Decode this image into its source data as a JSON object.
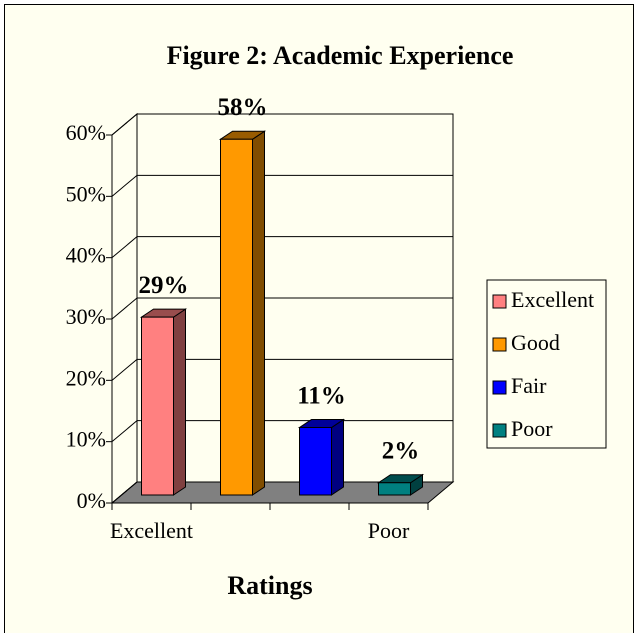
{
  "chart_data": {
    "type": "bar3d",
    "title": "Figure 2:  Academic Experience",
    "x_label": "Ratings",
    "categories": [
      "Excellent",
      null,
      null,
      "Poor"
    ],
    "values": [
      29,
      58,
      11,
      2
    ],
    "value_labels": [
      "29%",
      "58%",
      "11%",
      "2%"
    ],
    "colors": [
      "#ff8080",
      "#ff9900",
      "#0000ff",
      "#008080"
    ],
    "legend_labels": [
      "Excellent",
      "Good",
      "Fair",
      "Poor"
    ],
    "ylim": [
      0,
      60
    ],
    "yticks": [
      {
        "value": 0,
        "label": "0%"
      },
      {
        "value": 10,
        "label": "10%"
      },
      {
        "value": 20,
        "label": "20%"
      },
      {
        "value": 30,
        "label": "30%"
      },
      {
        "value": 40,
        "label": "40%"
      },
      {
        "value": 50,
        "label": "50%"
      },
      {
        "value": 60,
        "label": "60%"
      }
    ],
    "grid": true,
    "legend": "right"
  }
}
